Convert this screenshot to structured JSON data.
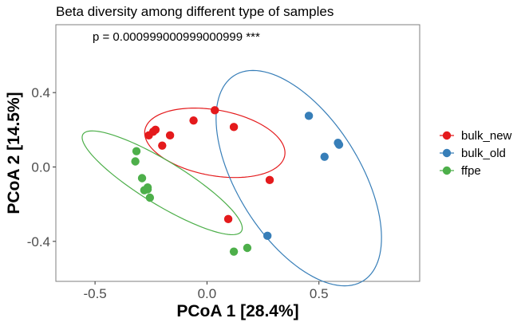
{
  "chart_data": {
    "type": "scatter",
    "title": "Beta diversity among different type of samples",
    "annotation": "p = 0.000999000999000999 ***",
    "xlabel": "PCoA 1 [28.4%]",
    "ylabel": "PCoA 2 [14.5%]",
    "xlim": [
      -0.675,
      0.95
    ],
    "ylim": [
      -0.615,
      0.765
    ],
    "xticks": [
      -0.5,
      0.0,
      0.5
    ],
    "xtick_labels": [
      "-0.5",
      "0.0",
      "0.5"
    ],
    "yticks": [
      -0.4,
      0.0,
      0.4
    ],
    "ytick_labels": [
      "-0.4",
      "0.0",
      "0.4"
    ],
    "grid": false,
    "legend_position": "right",
    "series": [
      {
        "name": "bulk_new",
        "color": "#e41a1c",
        "x": [
          -0.23,
          -0.24,
          -0.26,
          -0.2,
          -0.165,
          -0.06,
          0.035,
          0.12,
          0.28,
          0.095
        ],
        "y": [
          0.2,
          0.19,
          0.17,
          0.115,
          0.17,
          0.25,
          0.305,
          0.215,
          -0.07,
          -0.28
        ],
        "ellipse": {
          "cx": 0.035,
          "cy": 0.13,
          "rx": 0.32,
          "ry": 0.175,
          "angle_deg": -14
        }
      },
      {
        "name": "bulk_old",
        "color": "#377eb8",
        "x": [
          0.455,
          0.585,
          0.59,
          0.525,
          0.27
        ],
        "y": [
          0.275,
          0.13,
          0.12,
          0.055,
          -0.37
        ],
        "ellipse": {
          "cx": 0.41,
          "cy": -0.06,
          "rx": 0.285,
          "ry": 0.625,
          "angle_deg": 25
        }
      },
      {
        "name": "ffpe",
        "color": "#4daf4a",
        "x": [
          -0.315,
          -0.32,
          -0.29,
          -0.28,
          -0.265,
          -0.265,
          -0.255,
          0.12,
          0.18
        ],
        "y": [
          0.085,
          0.03,
          -0.06,
          -0.125,
          -0.11,
          -0.12,
          -0.165,
          -0.455,
          -0.435
        ],
        "ellipse": {
          "cx": -0.2,
          "cy": -0.085,
          "rx": 0.44,
          "ry": 0.11,
          "angle_deg": -37
        }
      }
    ]
  }
}
